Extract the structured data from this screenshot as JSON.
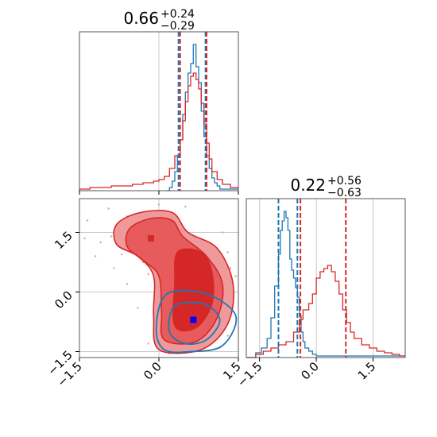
{
  "colors": {
    "red": "#d62728",
    "red_light": "#ee9a9b",
    "red_mid": "#e85b5c",
    "blue": "#1f77b4",
    "blue_marker": "#0000ff",
    "grid": "#c8c8c8",
    "vline_mid": "#5a5a8a"
  },
  "titles": {
    "p1": {
      "median": "0.66",
      "plus": "+0.24",
      "minus": "−0.29"
    },
    "p2": {
      "median": "0.22",
      "plus": "+0.56",
      "minus": "−0.63"
    }
  },
  "chart_data": [
    {
      "type": "histogram",
      "panel": "top-left marginal (param 1)",
      "xlim": [
        -1.5,
        1.5
      ],
      "grid": true,
      "xticks": [
        -1.5,
        0.0,
        1.5
      ],
      "show_tick_labels": false,
      "vlines": [
        {
          "x": 0.37,
          "color": "blue",
          "style": "dashed"
        },
        {
          "x": 0.88,
          "color": "blue",
          "style": "dashed"
        },
        {
          "x": 0.4,
          "color": "red",
          "style": "dashed"
        },
        {
          "x": 0.9,
          "color": "red",
          "style": "dashed"
        }
      ],
      "series": [
        {
          "color": "blue",
          "bins": [
            [
              0.15,
              0.0
            ],
            [
              0.2,
              0.02
            ],
            [
              0.25,
              0.06
            ],
            [
              0.3,
              0.12
            ],
            [
              0.35,
              0.22
            ],
            [
              0.4,
              0.32
            ],
            [
              0.45,
              0.48
            ],
            [
              0.5,
              0.62
            ],
            [
              0.55,
              0.74
            ],
            [
              0.6,
              0.8
            ],
            [
              0.65,
              0.92
            ],
            [
              0.7,
              0.78
            ],
            [
              0.75,
              0.68
            ],
            [
              0.8,
              0.5
            ],
            [
              0.85,
              0.34
            ],
            [
              0.9,
              0.22
            ],
            [
              0.95,
              0.14
            ],
            [
              1.0,
              0.08
            ],
            [
              1.05,
              0.05
            ],
            [
              1.1,
              0.03
            ],
            [
              1.15,
              0.01
            ]
          ]
        },
        {
          "color": "red",
          "bins": [
            [
              -1.5,
              0.01
            ],
            [
              -1.3,
              0.02
            ],
            [
              -1.1,
              0.02
            ],
            [
              -0.9,
              0.03
            ],
            [
              -0.7,
              0.03
            ],
            [
              -0.5,
              0.04
            ],
            [
              -0.3,
              0.05
            ],
            [
              -0.1,
              0.06
            ],
            [
              0.0,
              0.07
            ],
            [
              0.1,
              0.09
            ],
            [
              0.2,
              0.14
            ],
            [
              0.3,
              0.22
            ],
            [
              0.4,
              0.32
            ],
            [
              0.45,
              0.44
            ],
            [
              0.5,
              0.56
            ],
            [
              0.55,
              0.66
            ],
            [
              0.6,
              0.72
            ],
            [
              0.65,
              0.74
            ],
            [
              0.7,
              0.7
            ],
            [
              0.75,
              0.64
            ],
            [
              0.8,
              0.55
            ],
            [
              0.85,
              0.42
            ],
            [
              0.9,
              0.3
            ],
            [
              0.95,
              0.2
            ],
            [
              1.0,
              0.12
            ],
            [
              1.1,
              0.07
            ],
            [
              1.2,
              0.04
            ],
            [
              1.35,
              0.02
            ]
          ]
        }
      ]
    },
    {
      "type": "contour",
      "panel": "bottom-left 2D (param 1 vs param 2)",
      "xlim": [
        -1.5,
        1.5
      ],
      "ylim": [
        -1.65,
        2.35
      ],
      "grid": true,
      "xticks": [
        -1.5,
        0.0,
        1.5
      ],
      "yticks": [
        -1.5,
        0.0,
        1.5
      ],
      "xtick_labels": [
        "−1.5",
        "0.0",
        "1.5"
      ],
      "ytick_labels": [
        "−1.5",
        "0.0",
        "1.5"
      ],
      "red_outer": [
        [
          -0.8,
          1.7
        ],
        [
          -0.35,
          2.0
        ],
        [
          0.25,
          2.0
        ],
        [
          0.55,
          1.5
        ],
        [
          1.1,
          1.1
        ],
        [
          1.4,
          0.2
        ],
        [
          1.3,
          -0.8
        ],
        [
          0.8,
          -1.45
        ],
        [
          0.0,
          -1.45
        ],
        [
          -0.1,
          -0.6
        ],
        [
          -0.1,
          0.4
        ],
        [
          -0.4,
          0.9
        ],
        [
          -0.8,
          1.2
        ]
      ],
      "red_mid": [
        [
          -0.55,
          1.6
        ],
        [
          -0.15,
          1.85
        ],
        [
          0.25,
          1.8
        ],
        [
          0.45,
          1.4
        ],
        [
          0.9,
          0.9
        ],
        [
          1.2,
          0.2
        ],
        [
          1.1,
          -0.65
        ],
        [
          0.7,
          -1.25
        ],
        [
          0.1,
          -1.2
        ],
        [
          0.05,
          -0.5
        ],
        [
          0.0,
          0.4
        ],
        [
          -0.3,
          0.8
        ],
        [
          -0.6,
          1.15
        ]
      ],
      "red_inner": [
        [
          0.35,
          1.0
        ],
        [
          0.8,
          1.0
        ],
        [
          1.0,
          0.5
        ],
        [
          1.0,
          -0.3
        ],
        [
          0.7,
          -0.9
        ],
        [
          0.3,
          -0.85
        ],
        [
          0.3,
          0.2
        ]
      ],
      "blue_outer": [
        [
          0.15,
          -0.05
        ],
        [
          0.9,
          -0.05
        ],
        [
          1.45,
          -0.6
        ],
        [
          1.2,
          -1.35
        ],
        [
          0.6,
          -1.5
        ],
        [
          0.1,
          -1.45
        ],
        [
          -0.05,
          -0.9
        ]
      ],
      "blue_inner": [
        [
          0.3,
          -0.35
        ],
        [
          0.85,
          -0.3
        ],
        [
          1.15,
          -0.7
        ],
        [
          0.9,
          -1.2
        ],
        [
          0.5,
          -1.3
        ],
        [
          0.2,
          -1.0
        ]
      ],
      "markers": [
        {
          "x": -0.15,
          "y": 1.35,
          "color": "red"
        },
        {
          "x": 0.75,
          "y": 0.3,
          "color": "red"
        },
        {
          "x": 0.65,
          "y": -0.7,
          "color": "blue_marker"
        }
      ],
      "scatter": [
        [
          -0.6,
          1.9
        ],
        [
          -0.5,
          1.55
        ],
        [
          -0.9,
          1.4
        ],
        [
          -0.7,
          0.95
        ],
        [
          -1.1,
          1.25
        ],
        [
          -1.4,
          1.35
        ],
        [
          -0.3,
          0.75
        ],
        [
          -0.2,
          0.45
        ],
        [
          1.3,
          1.0
        ],
        [
          1.35,
          0.6
        ],
        [
          1.4,
          -0.2
        ],
        [
          1.3,
          -1.1
        ],
        [
          0.2,
          -1.55
        ],
        [
          -0.2,
          -1.3
        ],
        [
          0.0,
          2.2
        ],
        [
          -0.85,
          0.6
        ],
        [
          -1.2,
          0.9
        ],
        [
          -0.95,
          2.1
        ],
        [
          0.5,
          2.15
        ],
        [
          1.2,
          1.5
        ],
        [
          -0.4,
          -0.4
        ],
        [
          -0.6,
          0.2
        ],
        [
          1.45,
          0.4
        ],
        [
          1.15,
          -1.4
        ],
        [
          -1.35,
          1.8
        ]
      ]
    },
    {
      "type": "histogram",
      "panel": "bottom-right marginal (param 2)",
      "xlim": [
        -1.85,
        2.35
      ],
      "grid": true,
      "xticks": [
        -1.5,
        0.0,
        1.5
      ],
      "xtick_labels": [
        "−1.5",
        "0.0",
        "1.5"
      ],
      "vlines": [
        {
          "x": -1.0,
          "color": "blue",
          "style": "dashed"
        },
        {
          "x": -0.5,
          "color": "blue",
          "style": "dashed"
        },
        {
          "x": -0.42,
          "color": "red",
          "style": "dashed"
        },
        {
          "x": 0.78,
          "color": "red",
          "style": "dashed"
        }
      ],
      "series": [
        {
          "color": "blue",
          "bins": [
            [
              -1.85,
              0.0
            ],
            [
              -1.6,
              0.03
            ],
            [
              -1.45,
              0.06
            ],
            [
              -1.3,
              0.12
            ],
            [
              -1.2,
              0.25
            ],
            [
              -1.1,
              0.45
            ],
            [
              -1.0,
              0.65
            ],
            [
              -0.95,
              0.8
            ],
            [
              -0.9,
              0.86
            ],
            [
              -0.85,
              0.92
            ],
            [
              -0.8,
              0.88
            ],
            [
              -0.75,
              0.8
            ],
            [
              -0.7,
              0.62
            ],
            [
              -0.65,
              0.55
            ],
            [
              -0.6,
              0.5
            ],
            [
              -0.55,
              0.44
            ],
            [
              -0.5,
              0.38
            ],
            [
              -0.45,
              0.26
            ],
            [
              -0.4,
              0.16
            ],
            [
              -0.35,
              0.1
            ],
            [
              -0.3,
              0.06
            ],
            [
              -0.2,
              0.04
            ],
            [
              -0.1,
              0.02
            ],
            [
              0.0,
              0.01
            ]
          ]
        },
        {
          "color": "red",
          "bins": [
            [
              -1.85,
              0.0
            ],
            [
              -1.6,
              0.02
            ],
            [
              -1.4,
              0.04
            ],
            [
              -1.2,
              0.06
            ],
            [
              -1.0,
              0.08
            ],
            [
              -0.8,
              0.1
            ],
            [
              -0.6,
              0.16
            ],
            [
              -0.45,
              0.24
            ],
            [
              -0.35,
              0.3
            ],
            [
              -0.2,
              0.34
            ],
            [
              -0.1,
              0.4
            ],
            [
              0.0,
              0.5
            ],
            [
              0.1,
              0.54
            ],
            [
              0.2,
              0.56
            ],
            [
              0.3,
              0.58
            ],
            [
              0.4,
              0.54
            ],
            [
              0.5,
              0.48
            ],
            [
              0.6,
              0.4
            ],
            [
              0.7,
              0.3
            ],
            [
              0.8,
              0.22
            ],
            [
              0.9,
              0.16
            ],
            [
              1.0,
              0.12
            ],
            [
              1.2,
              0.08
            ],
            [
              1.4,
              0.06
            ],
            [
              1.6,
              0.04
            ],
            [
              1.8,
              0.03
            ],
            [
              2.0,
              0.02
            ],
            [
              2.2,
              0.01
            ]
          ]
        }
      ]
    }
  ]
}
